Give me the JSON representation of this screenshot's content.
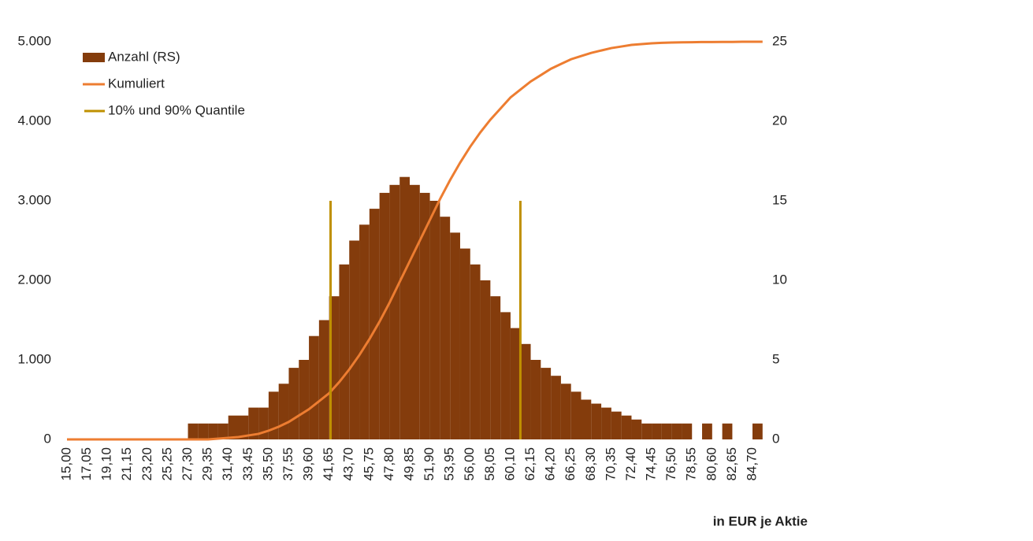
{
  "chart_data": {
    "type": "histogram",
    "bins": [
      15,
      16.025,
      17.05,
      18.075,
      19.1,
      20.125,
      21.15,
      22.175,
      23.2,
      24.225,
      25.25,
      26.275,
      27.3,
      28.325,
      29.35,
      30.375,
      31.4,
      32.425,
      33.45,
      34.475,
      35.5,
      36.525,
      37.55,
      38.575,
      39.6,
      40.625,
      41.65,
      42.675,
      43.7,
      44.725,
      45.75,
      46.775,
      47.8,
      48.825,
      49.85,
      50.875,
      51.9,
      52.925,
      53.95,
      54.975,
      56,
      57.025,
      58.05,
      59.075,
      60.1,
      61.125,
      62.15,
      63.175,
      64.2,
      65.225,
      66.25,
      67.275,
      68.3,
      69.325,
      70.35,
      71.375,
      72.4,
      73.425,
      74.45,
      75.475,
      76.5,
      77.525,
      78.55,
      79.575,
      80.6,
      81.625,
      82.65,
      83.675,
      84.7,
      85.725
    ],
    "series": [
      {
        "name": "Anzahl (RS)",
        "type": "histogram",
        "color": "#843c0c",
        "values": [
          0,
          0,
          0,
          0,
          0,
          0,
          0,
          0,
          0,
          0,
          0,
          0,
          200,
          200,
          200,
          200,
          300,
          300,
          400,
          400,
          600,
          700,
          900,
          1000,
          1300,
          1500,
          1800,
          2200,
          2500,
          2700,
          2900,
          3100,
          3200,
          3300,
          3200,
          3100,
          3000,
          2800,
          2600,
          2400,
          2200,
          2000,
          1800,
          1600,
          1400,
          1200,
          1000,
          900,
          800,
          700,
          600,
          500,
          450,
          400,
          350,
          300,
          250,
          200,
          200,
          200,
          200,
          200,
          0,
          200,
          0,
          200,
          0,
          0,
          200
        ]
      },
      {
        "name": "Kumuliert",
        "type": "line",
        "color": "#ed7d31",
        "axis": "y2",
        "values": [
          0,
          0,
          0,
          0,
          0,
          0,
          0,
          0,
          0,
          0,
          0,
          0,
          0,
          0,
          0,
          0.05,
          0.1,
          0.15,
          0.25,
          0.35,
          0.55,
          0.8,
          1.1,
          1.5,
          1.9,
          2.4,
          2.9,
          3.6,
          4.4,
          5.3,
          6.3,
          7.4,
          8.6,
          9.9,
          11.2,
          12.5,
          13.8,
          15.1,
          16.3,
          17.4,
          18.4,
          19.3,
          20.1,
          20.8,
          21.5,
          22.0,
          22.5,
          22.9,
          23.3,
          23.6,
          23.9,
          24.1,
          24.3,
          24.45,
          24.6,
          24.7,
          24.8,
          24.85,
          24.9,
          24.93,
          24.95,
          24.96,
          24.97,
          24.98,
          24.98,
          24.99,
          24.99,
          25,
          25,
          25
        ]
      },
      {
        "name": "10% und 90% Quantile",
        "type": "vline",
        "color": "#bf9000",
        "x": [
          41.8,
          61.1
        ],
        "values": [
          3000,
          3000
        ]
      }
    ],
    "xlabel": "in EUR je Aktie",
    "xlim": [
      15,
      85.8
    ],
    "xticks": [
      {
        "value": 15,
        "label": "15,00"
      },
      {
        "value": 17.05,
        "label": "17,05"
      },
      {
        "value": 19.1,
        "label": "19,10"
      },
      {
        "value": 21.15,
        "label": "21,15"
      },
      {
        "value": 23.2,
        "label": "23,20"
      },
      {
        "value": 25.25,
        "label": "25,25"
      },
      {
        "value": 27.3,
        "label": "27,30"
      },
      {
        "value": 29.35,
        "label": "29,35"
      },
      {
        "value": 31.4,
        "label": "31,40"
      },
      {
        "value": 33.45,
        "label": "33,45"
      },
      {
        "value": 35.5,
        "label": "35,50"
      },
      {
        "value": 37.55,
        "label": "37,55"
      },
      {
        "value": 39.6,
        "label": "39,60"
      },
      {
        "value": 41.65,
        "label": "41,65"
      },
      {
        "value": 43.7,
        "label": "43,70"
      },
      {
        "value": 45.75,
        "label": "45,75"
      },
      {
        "value": 47.8,
        "label": "47,80"
      },
      {
        "value": 49.85,
        "label": "49,85"
      },
      {
        "value": 51.9,
        "label": "51,90"
      },
      {
        "value": 53.95,
        "label": "53,95"
      },
      {
        "value": 56,
        "label": "56,00"
      },
      {
        "value": 58.05,
        "label": "58,05"
      },
      {
        "value": 60.1,
        "label": "60,10"
      },
      {
        "value": 62.15,
        "label": "62,15"
      },
      {
        "value": 64.2,
        "label": "64,20"
      },
      {
        "value": 66.25,
        "label": "66,25"
      },
      {
        "value": 68.3,
        "label": "68,30"
      },
      {
        "value": 70.35,
        "label": "70,35"
      },
      {
        "value": 72.4,
        "label": "72,40"
      },
      {
        "value": 74.45,
        "label": "74,45"
      },
      {
        "value": 76.5,
        "label": "76,50"
      },
      {
        "value": 78.55,
        "label": "78,55"
      },
      {
        "value": 80.6,
        "label": "80,60"
      },
      {
        "value": 82.65,
        "label": "82,65"
      },
      {
        "value": 84.7,
        "label": "84,70"
      }
    ],
    "ylim": [
      0,
      5000
    ],
    "yticks": [
      0,
      {
        "value": 1000,
        "label": "1.000"
      },
      {
        "value": 2000,
        "label": "2.000"
      },
      {
        "value": 3000,
        "label": "3.000"
      },
      {
        "value": 4000,
        "label": "4.000"
      },
      {
        "value": 5000,
        "label": "5.000"
      }
    ],
    "y2lim": [
      0,
      25
    ],
    "y2ticks": [
      0,
      5,
      10,
      15,
      20,
      25
    ],
    "legend": "upper left"
  }
}
